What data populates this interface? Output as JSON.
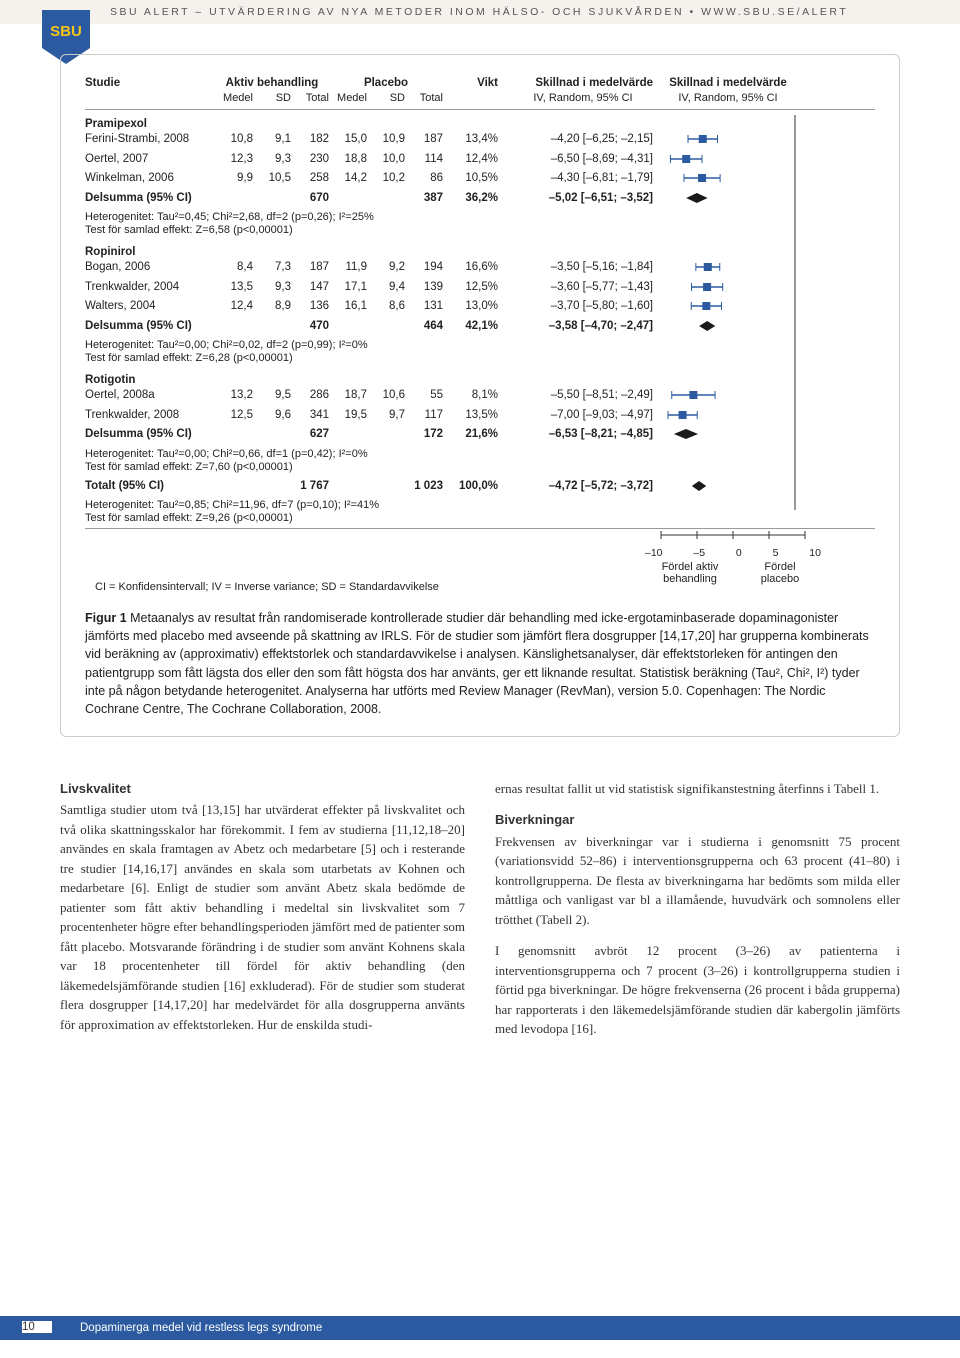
{
  "header": {
    "text": "SBU ALERT – UTVÄRDERING AV NYA METODER INOM HÄLSO- OCH SJUKVÅRDEN",
    "url": "WWW.SBU.SE/ALERT",
    "dot": "•"
  },
  "forest": {
    "headers": {
      "study": "Studie",
      "active": "Aktiv behandling",
      "placebo": "Placebo",
      "weight": "Vikt",
      "eff1": "Skillnad i medelvärde",
      "eff2": "Skillnad i medelvärde",
      "medel": "Medel",
      "sd": "SD",
      "total": "Total",
      "iv": "IV, Random, 95% CI"
    },
    "groups": [
      {
        "name": "Pramipexol",
        "rows": [
          {
            "study": "Ferini-Strambi, 2008",
            "m1": "10,8",
            "s1": "9,1",
            "t1": "182",
            "m2": "15,0",
            "s2": "10,9",
            "t2": "187",
            "w": "13,4%",
            "ci": "–4,20 [–6,25; –2,15]"
          },
          {
            "study": "Oertel, 2007",
            "m1": "12,3",
            "s1": "9,3",
            "t1": "230",
            "m2": "18,8",
            "s2": "10,0",
            "t2": "114",
            "w": "12,4%",
            "ci": "–6,50 [–8,69; –4,31]"
          },
          {
            "study": "Winkelman, 2006",
            "m1": "9,9",
            "s1": "10,5",
            "t1": "258",
            "m2": "14,2",
            "s2": "10,2",
            "t2": "86",
            "w": "10,5%",
            "ci": "–4,30 [–6,81; –1,79]"
          }
        ],
        "subtotal": {
          "label": "Delsumma (95% CI)",
          "t1": "670",
          "t2": "387",
          "w": "36,2%",
          "ci": "–5,02 [–6,51; –3,52]"
        },
        "het": "Heterogenitet: Tau²=0,45; Chi²=2,68, df=2 (p=0,26); I²=25%",
        "test": "Test för samlad effekt: Z=6,58 (p<0,00001)"
      },
      {
        "name": "Ropinirol",
        "rows": [
          {
            "study": "Bogan, 2006",
            "m1": "8,4",
            "s1": "7,3",
            "t1": "187",
            "m2": "11,9",
            "s2": "9,2",
            "t2": "194",
            "w": "16,6%",
            "ci": "–3,50 [–5,16; –1,84]"
          },
          {
            "study": "Trenkwalder, 2004",
            "m1": "13,5",
            "s1": "9,3",
            "t1": "147",
            "m2": "17,1",
            "s2": "9,4",
            "t2": "139",
            "w": "12,5%",
            "ci": "–3,60 [–5,77; –1,43]"
          },
          {
            "study": "Walters, 2004",
            "m1": "12,4",
            "s1": "8,9",
            "t1": "136",
            "m2": "16,1",
            "s2": "8,6",
            "t2": "131",
            "w": "13,0%",
            "ci": "–3,70 [–5,80; –1,60]"
          }
        ],
        "subtotal": {
          "label": "Delsumma (95% CI)",
          "t1": "470",
          "t2": "464",
          "w": "42,1%",
          "ci": "–3,58 [–4,70; –2,47]"
        },
        "het": "Heterogenitet: Tau²=0,00; Chi²=0,02, df=2 (p=0,99); I²=0%",
        "test": "Test för samlad effekt: Z=6,28 (p<0,00001)"
      },
      {
        "name": "Rotigotin",
        "rows": [
          {
            "study": "Oertel, 2008a",
            "m1": "13,2",
            "s1": "9,5",
            "t1": "286",
            "m2": "18,7",
            "s2": "10,6",
            "t2": "55",
            "w": "8,1%",
            "ci": "–5,50 [–8,51; –2,49]"
          },
          {
            "study": "Trenkwalder, 2008",
            "m1": "12,5",
            "s1": "9,6",
            "t1": "341",
            "m2": "19,5",
            "s2": "9,7",
            "t2": "117",
            "w": "13,5%",
            "ci": "–7,00 [–9,03; –4,97]"
          }
        ],
        "subtotal": {
          "label": "Delsumma (95% CI)",
          "t1": "627",
          "t2": "172",
          "w": "21,6%",
          "ci": "–6,53 [–8,21; –4,85]"
        },
        "het": "Heterogenitet: Tau²=0,00; Chi²=0,66, df=1 (p=0,42); I²=0%",
        "test": "Test för samlad effekt: Z=7,60 (p<0,00001)"
      }
    ],
    "total": {
      "label": "Totalt (95% CI)",
      "t1": "1 767",
      "t2": "1 023",
      "w": "100,0%",
      "ci": "–4,72 [–5,72; –3,72]",
      "het": "Heterogenitet: Tau²=0,85; Chi²=11,96, df=7 (p=0,10); I²=41%",
      "test": "Test för samlad effekt: Z=9,26 (p<0,00001)"
    },
    "axis": {
      "ticks": [
        "–10",
        "–5",
        "0",
        "5",
        "10"
      ],
      "left_label": "Fördel aktiv behandling",
      "right_label": "Fördel placebo",
      "left_l1": "Fördel aktiv",
      "left_l2": "behandling",
      "right_l1": "Fördel",
      "right_l2": "placebo"
    },
    "ci_legend": "CI = Konfidensintervall; IV = Inverse variance; SD = Standardavvikelse",
    "plot_style": {
      "point_color": "#2b5aa0",
      "line_color": "#2b5aa0",
      "diamond_fill": "#1a1a1a",
      "xlim": [
        -10,
        10
      ],
      "zero_line_color": "#333333"
    }
  },
  "caption": {
    "label": "Figur 1",
    "text": " Metaanalys av resultat från randomiserade kontrollerade studier där behandling med icke-ergotaminbaserade dopaminagonister jämförts med placebo med avseende på skattning av IRLS. För de studier som jämfört flera dosgrupper [14,17,20] har grupperna kombinerats vid beräkning av (approximativ) effektstorlek och standardavvikelse i analysen. Känslighetsanalyser, där effektstorleken för antingen den patientgrupp som fått lägsta dos eller den som fått högsta dos har använts, ger ett liknande resultat. Statistisk beräkning (Tau², Chi², I²) tyder inte på någon betydande heterogenitet. Analyserna har utförts med Review Manager (RevMan), version 5.0. Copenhagen: The Nordic Cochrane Centre, The Cochrane Collaboration, 2008."
  },
  "body": {
    "left": {
      "h1": "Livskvalitet",
      "p1": "Samtliga studier utom två [13,15] har utvärderat effekter på livskvalitet och två olika skattningsskalor har förekommit. I fem av studierna [11,12,18–20] användes en skala framtagen av Abetz och medarbetare [5] och i resterande tre studier [14,16,17] användes en skala som utarbetats av Kohnen och medarbetare [6]. Enligt de studier som använt Abetz skala bedömde de patienter som fått aktiv behandling i medeltal sin livskvalitet som 7 procentenheter högre efter behandlingsperioden jämfört med de patienter som fått placebo. Motsvarande förändring i de studier som använt Kohnens skala var 18 procentenheter till fördel för aktiv behandling (den läkemedelsjämförande studien [16] exkluderad). För de studier som studerat flera dosgrupper [14,17,20] har medelvärdet för alla dosgrupperna använts för approximation av effektstorleken. Hur de enskilda studi-"
    },
    "right": {
      "p0": "ernas resultat fallit ut vid statistisk signifikanstestning återfinns i Tabell 1.",
      "h2": "Biverkningar",
      "p2": "Frekvensen av biverkningar var i studierna i genomsnitt 75 procent (variationsvidd 52–86) i interventionsgrupperna och 63 procent (41–80) i kontrollgrupperna. De flesta av biverkningarna har bedömts som milda eller måttliga och vanligast var bl a illamående, huvudvärk och somnolens eller trötthet (Tabell 2).",
      "p3": "I genomsnitt avbröt 12 procent (3–26) av patienterna i interventionsgrupperna och 7 procent (3–26) i kontrollgrupperna studien i förtid pga biverkningar. De högre frekvenserna (26 procent i båda grupperna) har rapporterats i den läkemedelsjämförande studien där kabergolin jämförts med levodopa [16]."
    }
  },
  "footer": {
    "page": "10",
    "title": "Dopaminerga medel vid restless legs syndrome"
  }
}
